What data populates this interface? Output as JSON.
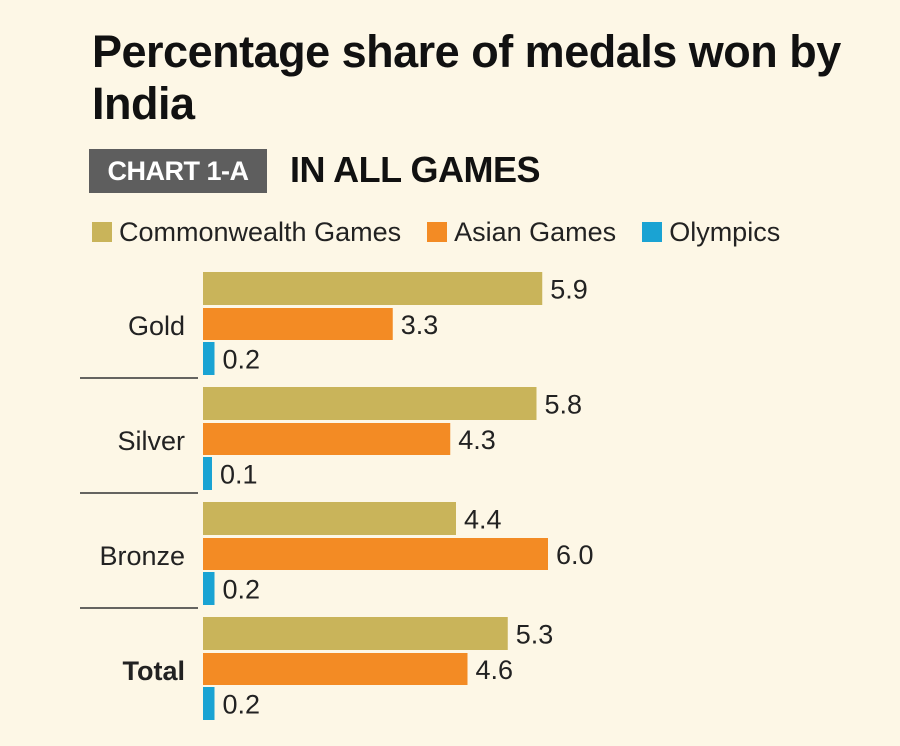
{
  "title": "Percentage share of medals won by India",
  "chip_label": "CHART 1-A",
  "subtitle": "IN ALL GAMES",
  "chart_data": {
    "type": "bar",
    "orientation": "horizontal",
    "categories": [
      "Gold",
      "Silver",
      "Bronze",
      "Total"
    ],
    "series": [
      {
        "name": "Commonwealth Games",
        "color": "#c9b45a",
        "values": [
          5.9,
          5.8,
          4.4,
          5.3
        ]
      },
      {
        "name": "Asian Games",
        "color": "#f38b24",
        "values": [
          3.3,
          4.3,
          6.0,
          4.6
        ]
      },
      {
        "name": "Olympics",
        "color": "#1aa3d3",
        "values": [
          0.2,
          0.1,
          0.2,
          0.2
        ]
      }
    ],
    "value_labels": [
      [
        "5.9",
        "5.8",
        "4.4",
        "5.3"
      ],
      [
        "3.3",
        "4.3",
        "6.0",
        "4.6"
      ],
      [
        "0.2",
        "0.1",
        "0.2",
        "0.2"
      ]
    ],
    "bold_categories": [
      "Total"
    ],
    "xlim": [
      0,
      6
    ],
    "grid": false,
    "legend_position": "top"
  }
}
